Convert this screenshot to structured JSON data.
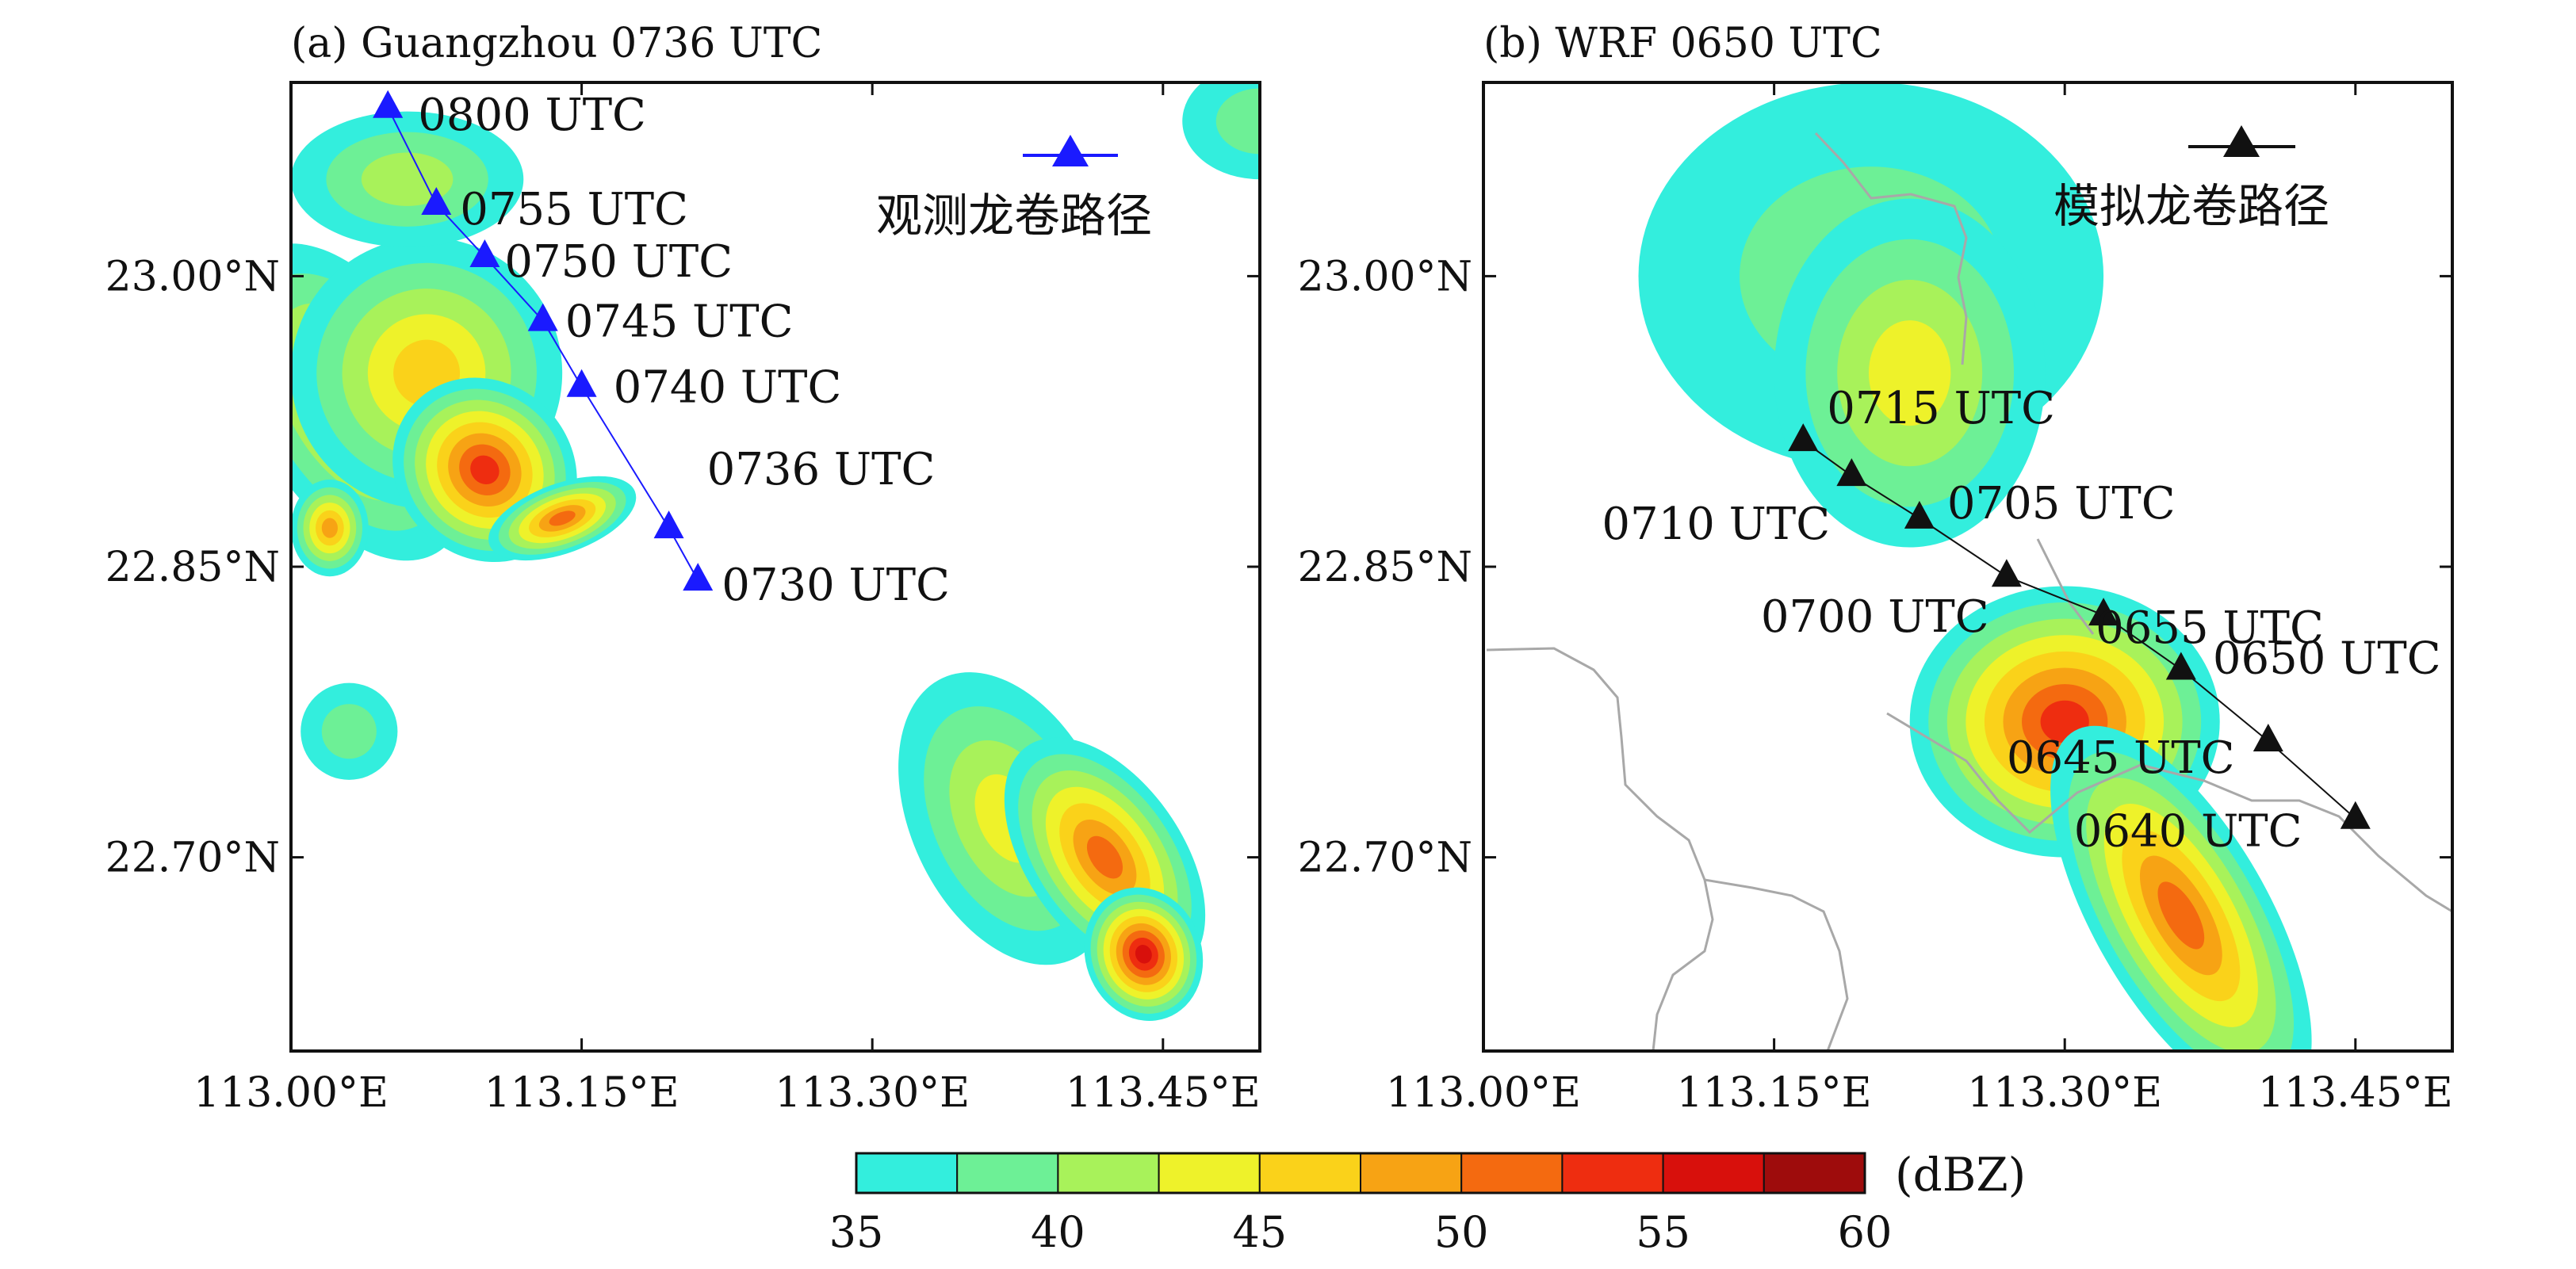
{
  "chart_data": [
    {
      "type": "heatmap",
      "panel_title": "(a) Guangzhou 0736 UTC",
      "x_axis": {
        "ticks": [
          113.0,
          113.15,
          113.3,
          113.45
        ],
        "tick_labels": [
          "113.00°E",
          "113.15°E",
          "113.30°E",
          "113.45°E"
        ],
        "range": [
          113.0,
          113.5
        ]
      },
      "y_axis": {
        "ticks": [
          23.0,
          22.85,
          22.7
        ],
        "tick_labels": [
          "23.00°N",
          "22.85°N",
          "22.70°N"
        ],
        "range": [
          22.6,
          23.1
        ]
      },
      "track": {
        "legend_label": "观测龙卷路径",
        "color": "#1a1aff",
        "points": [
          {
            "time": "0800 UTC",
            "lon": 113.05,
            "lat": 23.087
          },
          {
            "time": "0755 UTC",
            "lon": 113.075,
            "lat": 23.037
          },
          {
            "time": "0750 UTC",
            "lon": 113.1,
            "lat": 23.01
          },
          {
            "time": "0745 UTC",
            "lon": 113.13,
            "lat": 22.977
          },
          {
            "time": "0740 UTC",
            "lon": 113.15,
            "lat": 22.943
          },
          {
            "time": "0736 UTC",
            "lon": 113.195,
            "lat": 22.87
          },
          {
            "time": "0730 UTC",
            "lon": 113.21,
            "lat": 22.843
          }
        ]
      },
      "reflectivity_cells": [
        {
          "lon": 113.03,
          "lat": 22.935,
          "rlon": 0.05,
          "rlat": 0.09,
          "rot": -30,
          "dbz": 48
        },
        {
          "lon": 113.07,
          "lat": 22.95,
          "rlon": 0.07,
          "rlat": 0.07,
          "rot": -35,
          "dbz": 46
        },
        {
          "lon": 113.1,
          "lat": 22.9,
          "rlon": 0.045,
          "rlat": 0.05,
          "rot": -45,
          "dbz": 55
        },
        {
          "lon": 113.14,
          "lat": 22.875,
          "rlon": 0.04,
          "rlat": 0.018,
          "rot": -20,
          "dbz": 53
        },
        {
          "lon": 113.02,
          "lat": 22.87,
          "rlon": 0.02,
          "rlat": 0.025,
          "rot": 0,
          "dbz": 50
        },
        {
          "lon": 113.06,
          "lat": 23.05,
          "rlon": 0.06,
          "rlat": 0.035,
          "rot": 0,
          "dbz": 42
        },
        {
          "lon": 113.37,
          "lat": 22.72,
          "rlon": 0.05,
          "rlat": 0.08,
          "rot": -25,
          "dbz": 44
        },
        {
          "lon": 113.42,
          "lat": 22.7,
          "rlon": 0.04,
          "rlat": 0.07,
          "rot": -35,
          "dbz": 51
        },
        {
          "lon": 113.44,
          "lat": 22.65,
          "rlon": 0.03,
          "rlat": 0.035,
          "rot": -20,
          "dbz": 56
        },
        {
          "lon": 113.5,
          "lat": 23.08,
          "rlon": 0.04,
          "rlat": 0.03,
          "rot": 0,
          "dbz": 40
        },
        {
          "lon": 113.03,
          "lat": 22.765,
          "rlon": 0.025,
          "rlat": 0.025,
          "rot": 0,
          "dbz": 40
        }
      ]
    },
    {
      "type": "heatmap",
      "panel_title": "(b) WRF 0650 UTC",
      "x_axis": {
        "ticks": [
          113.0,
          113.15,
          113.3,
          113.45
        ],
        "tick_labels": [
          "113.00°E",
          "113.15°E",
          "113.30°E",
          "113.45°E"
        ],
        "range": [
          113.0,
          113.5
        ]
      },
      "y_axis": {
        "ticks": [
          23.0,
          22.85,
          22.7
        ],
        "tick_labels": [
          "23.00°N",
          "22.85°N",
          "22.70°N"
        ],
        "range": [
          22.6,
          23.1
        ]
      },
      "track": {
        "legend_label": "模拟龙卷路径",
        "color": "#111111",
        "points": [
          {
            "time": "0715 UTC",
            "lon": 113.165,
            "lat": 22.915
          },
          {
            "time": "0710 UTC",
            "lon": 113.19,
            "lat": 22.897
          },
          {
            "time": "0705 UTC",
            "lon": 113.225,
            "lat": 22.875
          },
          {
            "time": "0700 UTC",
            "lon": 113.27,
            "lat": 22.845
          },
          {
            "time": "0655 UTC",
            "lon": 113.32,
            "lat": 22.825
          },
          {
            "time": "0650 UTC",
            "lon": 113.36,
            "lat": 22.797
          },
          {
            "time": "0645 UTC",
            "lon": 113.405,
            "lat": 22.76
          },
          {
            "time": "0640 UTC",
            "lon": 113.45,
            "lat": 22.72
          }
        ]
      },
      "reflectivity_cells": [
        {
          "lon": 113.2,
          "lat": 23.0,
          "rlon": 0.12,
          "rlat": 0.1,
          "rot": 0,
          "dbz": 40
        },
        {
          "lon": 113.22,
          "lat": 22.95,
          "rlon": 0.07,
          "rlat": 0.09,
          "rot": 0,
          "dbz": 44
        },
        {
          "lon": 113.3,
          "lat": 22.77,
          "rlon": 0.08,
          "rlat": 0.07,
          "rot": 0,
          "dbz": 55
        },
        {
          "lon": 113.36,
          "lat": 22.67,
          "rlon": 0.045,
          "rlat": 0.11,
          "rot": -30,
          "dbz": 53
        }
      ]
    }
  ],
  "colorbar": {
    "unit_label": "(dBZ)",
    "bounds": [
      35,
      60
    ],
    "tick_values": [
      35,
      40,
      45,
      50,
      55,
      60
    ],
    "tick_labels": [
      "35",
      "40",
      "45",
      "50",
      "55",
      "60"
    ],
    "colors": [
      "#33eedd",
      "#6df096",
      "#a8f25a",
      "#eef22a",
      "#fad21a",
      "#f7a314",
      "#f46a10",
      "#ee2d10",
      "#d8100c",
      "#9e0c0c"
    ]
  },
  "colors": {
    "map_border": "#a8a8a8",
    "blue_track": "#1a1aff",
    "black_track": "#111111",
    "frame": "#111111"
  }
}
